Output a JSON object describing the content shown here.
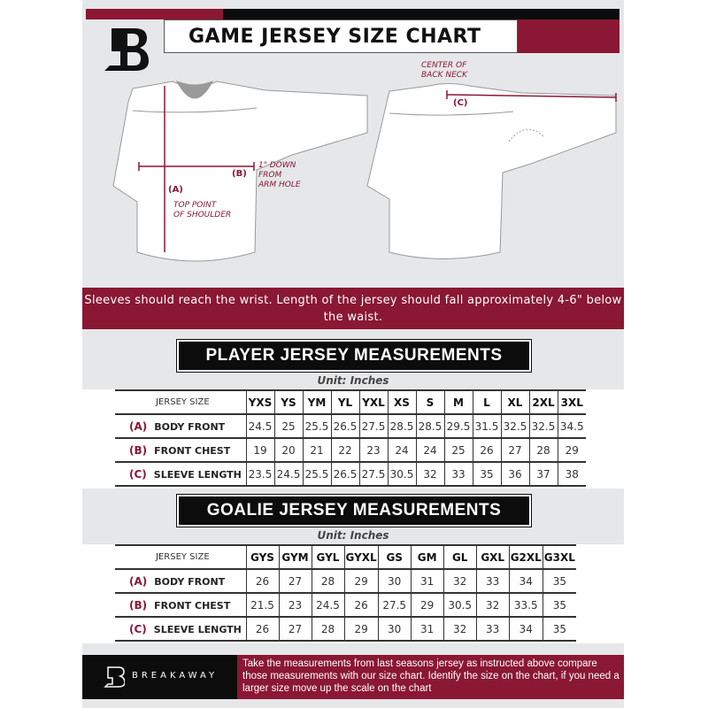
{
  "header": {
    "title": "GAME JERSEY SIZE CHART",
    "logo": "B"
  },
  "diagram": {
    "front_notes": {
      "a_label": "(A)",
      "a_note": "TOP POINT\nOF SHOULDER",
      "b_label": "(B)",
      "b_note": "1\" DOWN\nFROM\nARM HOLE"
    },
    "back_notes": {
      "c_label": "(C)",
      "c_note": "CENTER OF\nBACK NECK"
    }
  },
  "banner": "Sleeves should reach the wrist. Length of the jersey should fall approximately 4-6\" below the waist.",
  "player": {
    "title": "PLAYER JERSEY MEASUREMENTS",
    "unit": "Unit: Inches",
    "size_header": "JERSEY SIZE",
    "sizes": [
      "YXS",
      "YS",
      "YM",
      "YL",
      "YXL",
      "XS",
      "S",
      "M",
      "L",
      "XL",
      "2XL",
      "3XL"
    ],
    "rows": [
      {
        "key": "(A)",
        "label": "BODY FRONT",
        "values": [
          "24.5",
          "25",
          "25.5",
          "26.5",
          "27.5",
          "28.5",
          "28.5",
          "29.5",
          "31.5",
          "32.5",
          "32.5",
          "34.5"
        ]
      },
      {
        "key": "(B)",
        "label": "FRONT CHEST",
        "values": [
          "19",
          "20",
          "21",
          "22",
          "23",
          "24",
          "24",
          "25",
          "26",
          "27",
          "28",
          "29"
        ]
      },
      {
        "key": "(C)",
        "label": "SLEEVE LENGTH",
        "values": [
          "23.5",
          "24.5",
          "25.5",
          "26.5",
          "27.5",
          "30.5",
          "32",
          "33",
          "35",
          "36",
          "37",
          "38"
        ]
      }
    ]
  },
  "goalie": {
    "title": "GOALIE JERSEY MEASUREMENTS",
    "unit": "Unit: Inches",
    "size_header": "JERSEY SIZE",
    "sizes": [
      "GYS",
      "GYM",
      "GYL",
      "GYXL",
      "GS",
      "GM",
      "GL",
      "GXL",
      "G2XL",
      "G3XL"
    ],
    "rows": [
      {
        "key": "(A)",
        "label": "BODY FRONT",
        "values": [
          "26",
          "27",
          "28",
          "29",
          "30",
          "31",
          "32",
          "33",
          "34",
          "35"
        ]
      },
      {
        "key": "(B)",
        "label": "FRONT CHEST",
        "values": [
          "21.5",
          "23",
          "24.5",
          "26",
          "27.5",
          "29",
          "30.5",
          "32",
          "33.5",
          "35"
        ]
      },
      {
        "key": "(C)",
        "label": "SLEEVE LENGTH",
        "values": [
          "26",
          "27",
          "28",
          "29",
          "30",
          "31",
          "32",
          "33",
          "34",
          "35"
        ]
      }
    ]
  },
  "footer": {
    "brand": "BREAKAWAY",
    "text": "Take the measurements from last seasons jersey as instructed above compare those measurements  with our size chart. Identify the size on the chart, if you need a larger size move up the scale on the chart"
  },
  "colors": {
    "accent": "#8a1733",
    "dark": "#0c0c0c",
    "background": "#e6e7e9"
  }
}
